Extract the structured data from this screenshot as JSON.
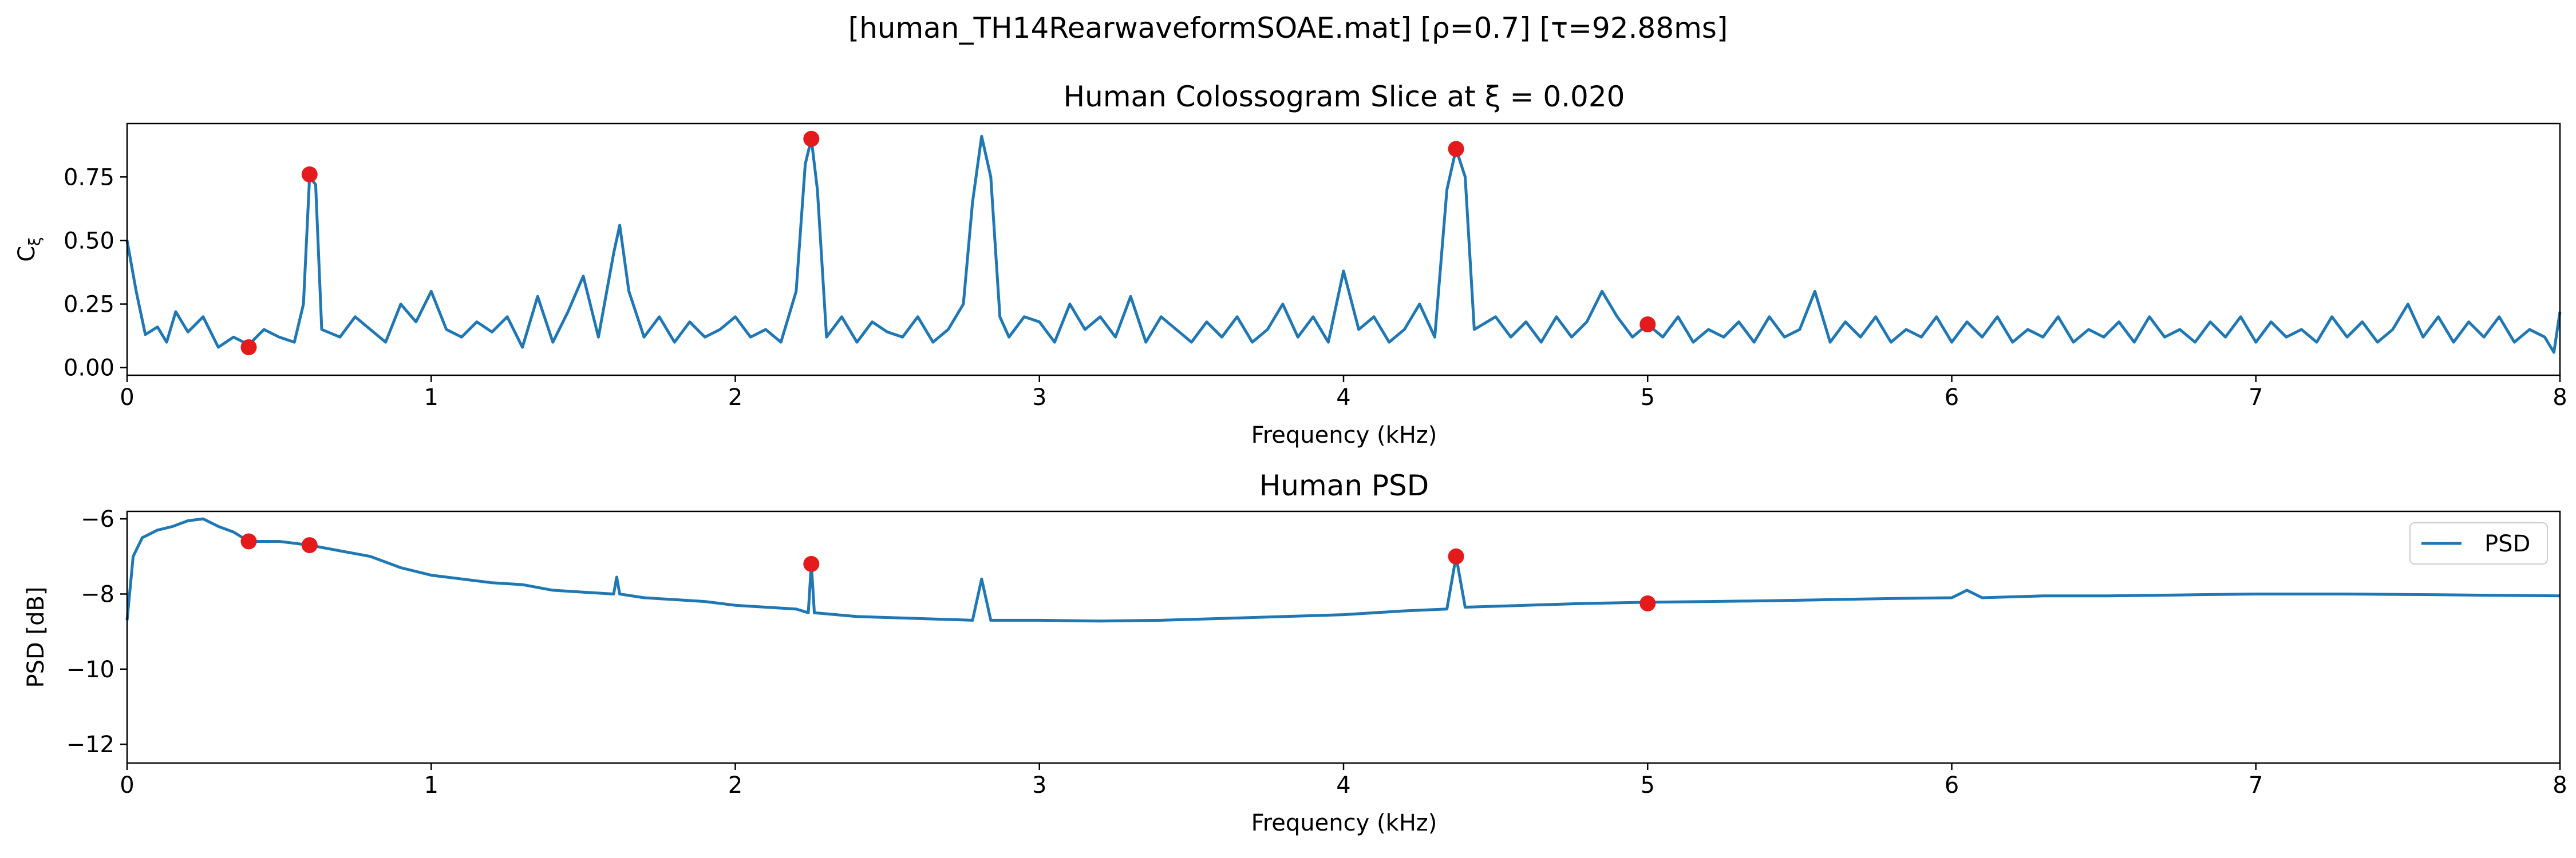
{
  "figure": {
    "suptitle": "[human_TH14RearwaveformSOAE.mat]   [ρ=0.7]   [τ=92.88ms]"
  },
  "chart_data": [
    {
      "type": "line",
      "title": "Human Colossogram Slice at ξ = 0.020",
      "xlabel": "Frequency (kHz)",
      "ylabel": "C_ξ",
      "xlim": [
        0,
        8
      ],
      "ylim": [
        -0.03,
        0.96
      ],
      "x_ticks": [
        0,
        1,
        2,
        3,
        4,
        5,
        6,
        7,
        8
      ],
      "x_tick_labels": [
        "0",
        "1",
        "2",
        "3",
        "4",
        "5",
        "6",
        "7",
        "8"
      ],
      "y_ticks": [
        0.0,
        0.25,
        0.5,
        0.75
      ],
      "y_tick_labels": [
        "0.00",
        "0.25",
        "0.50",
        "0.75"
      ],
      "grid": false,
      "series": [
        {
          "color": "#1f77b4",
          "points": [
            [
              0,
              0.5
            ],
            [
              0.03,
              0.3
            ],
            [
              0.06,
              0.13
            ],
            [
              0.1,
              0.16
            ],
            [
              0.13,
              0.1
            ],
            [
              0.16,
              0.22
            ],
            [
              0.2,
              0.14
            ],
            [
              0.25,
              0.2
            ],
            [
              0.3,
              0.08
            ],
            [
              0.35,
              0.12
            ],
            [
              0.4,
              0.09
            ],
            [
              0.45,
              0.15
            ],
            [
              0.5,
              0.12
            ],
            [
              0.55,
              0.1
            ],
            [
              0.58,
              0.25
            ],
            [
              0.6,
              0.75
            ],
            [
              0.62,
              0.72
            ],
            [
              0.64,
              0.15
            ],
            [
              0.7,
              0.12
            ],
            [
              0.75,
              0.2
            ],
            [
              0.8,
              0.15
            ],
            [
              0.85,
              0.1
            ],
            [
              0.9,
              0.25
            ],
            [
              0.95,
              0.18
            ],
            [
              1.0,
              0.3
            ],
            [
              1.05,
              0.15
            ],
            [
              1.1,
              0.12
            ],
            [
              1.15,
              0.18
            ],
            [
              1.2,
              0.14
            ],
            [
              1.25,
              0.2
            ],
            [
              1.3,
              0.08
            ],
            [
              1.35,
              0.28
            ],
            [
              1.4,
              0.1
            ],
            [
              1.45,
              0.22
            ],
            [
              1.5,
              0.36
            ],
            [
              1.55,
              0.12
            ],
            [
              1.6,
              0.45
            ],
            [
              1.62,
              0.56
            ],
            [
              1.65,
              0.3
            ],
            [
              1.7,
              0.12
            ],
            [
              1.75,
              0.2
            ],
            [
              1.8,
              0.1
            ],
            [
              1.85,
              0.18
            ],
            [
              1.9,
              0.12
            ],
            [
              1.95,
              0.15
            ],
            [
              2.0,
              0.2
            ],
            [
              2.05,
              0.12
            ],
            [
              2.1,
              0.15
            ],
            [
              2.15,
              0.1
            ],
            [
              2.2,
              0.3
            ],
            [
              2.23,
              0.8
            ],
            [
              2.25,
              0.9
            ],
            [
              2.27,
              0.7
            ],
            [
              2.3,
              0.12
            ],
            [
              2.35,
              0.2
            ],
            [
              2.4,
              0.1
            ],
            [
              2.45,
              0.18
            ],
            [
              2.5,
              0.14
            ],
            [
              2.55,
              0.12
            ],
            [
              2.6,
              0.2
            ],
            [
              2.65,
              0.1
            ],
            [
              2.7,
              0.15
            ],
            [
              2.75,
              0.25
            ],
            [
              2.78,
              0.65
            ],
            [
              2.81,
              0.91
            ],
            [
              2.84,
              0.75
            ],
            [
              2.87,
              0.2
            ],
            [
              2.9,
              0.12
            ],
            [
              2.95,
              0.2
            ],
            [
              3.0,
              0.18
            ],
            [
              3.05,
              0.1
            ],
            [
              3.1,
              0.25
            ],
            [
              3.15,
              0.15
            ],
            [
              3.2,
              0.2
            ],
            [
              3.25,
              0.12
            ],
            [
              3.3,
              0.28
            ],
            [
              3.35,
              0.1
            ],
            [
              3.4,
              0.2
            ],
            [
              3.45,
              0.15
            ],
            [
              3.5,
              0.1
            ],
            [
              3.55,
              0.18
            ],
            [
              3.6,
              0.12
            ],
            [
              3.65,
              0.2
            ],
            [
              3.7,
              0.1
            ],
            [
              3.75,
              0.15
            ],
            [
              3.8,
              0.25
            ],
            [
              3.85,
              0.12
            ],
            [
              3.9,
              0.2
            ],
            [
              3.95,
              0.1
            ],
            [
              4.0,
              0.38
            ],
            [
              4.05,
              0.15
            ],
            [
              4.1,
              0.2
            ],
            [
              4.15,
              0.1
            ],
            [
              4.2,
              0.15
            ],
            [
              4.25,
              0.25
            ],
            [
              4.3,
              0.12
            ],
            [
              4.34,
              0.7
            ],
            [
              4.37,
              0.86
            ],
            [
              4.4,
              0.75
            ],
            [
              4.43,
              0.15
            ],
            [
              4.5,
              0.2
            ],
            [
              4.55,
              0.12
            ],
            [
              4.6,
              0.18
            ],
            [
              4.65,
              0.1
            ],
            [
              4.7,
              0.2
            ],
            [
              4.75,
              0.12
            ],
            [
              4.8,
              0.18
            ],
            [
              4.85,
              0.3
            ],
            [
              4.9,
              0.2
            ],
            [
              4.95,
              0.12
            ],
            [
              5.0,
              0.17
            ],
            [
              5.05,
              0.12
            ],
            [
              5.1,
              0.2
            ],
            [
              5.15,
              0.1
            ],
            [
              5.2,
              0.15
            ],
            [
              5.25,
              0.12
            ],
            [
              5.3,
              0.18
            ],
            [
              5.35,
              0.1
            ],
            [
              5.4,
              0.2
            ],
            [
              5.45,
              0.12
            ],
            [
              5.5,
              0.15
            ],
            [
              5.55,
              0.3
            ],
            [
              5.6,
              0.1
            ],
            [
              5.65,
              0.18
            ],
            [
              5.7,
              0.12
            ],
            [
              5.75,
              0.2
            ],
            [
              5.8,
              0.1
            ],
            [
              5.85,
              0.15
            ],
            [
              5.9,
              0.12
            ],
            [
              5.95,
              0.2
            ],
            [
              6.0,
              0.1
            ],
            [
              6.05,
              0.18
            ],
            [
              6.1,
              0.12
            ],
            [
              6.15,
              0.2
            ],
            [
              6.2,
              0.1
            ],
            [
              6.25,
              0.15
            ],
            [
              6.3,
              0.12
            ],
            [
              6.35,
              0.2
            ],
            [
              6.4,
              0.1
            ],
            [
              6.45,
              0.15
            ],
            [
              6.5,
              0.12
            ],
            [
              6.55,
              0.18
            ],
            [
              6.6,
              0.1
            ],
            [
              6.65,
              0.2
            ],
            [
              6.7,
              0.12
            ],
            [
              6.75,
              0.15
            ],
            [
              6.8,
              0.1
            ],
            [
              6.85,
              0.18
            ],
            [
              6.9,
              0.12
            ],
            [
              6.95,
              0.2
            ],
            [
              7.0,
              0.1
            ],
            [
              7.05,
              0.18
            ],
            [
              7.1,
              0.12
            ],
            [
              7.15,
              0.15
            ],
            [
              7.2,
              0.1
            ],
            [
              7.25,
              0.2
            ],
            [
              7.3,
              0.12
            ],
            [
              7.35,
              0.18
            ],
            [
              7.4,
              0.1
            ],
            [
              7.45,
              0.15
            ],
            [
              7.5,
              0.25
            ],
            [
              7.55,
              0.12
            ],
            [
              7.6,
              0.2
            ],
            [
              7.65,
              0.1
            ],
            [
              7.7,
              0.18
            ],
            [
              7.75,
              0.12
            ],
            [
              7.8,
              0.2
            ],
            [
              7.85,
              0.1
            ],
            [
              7.9,
              0.15
            ],
            [
              7.95,
              0.12
            ],
            [
              7.98,
              0.06
            ],
            [
              8.0,
              0.22
            ]
          ]
        }
      ],
      "markers": {
        "color": "#e41a1c",
        "points": [
          [
            0.4,
            0.08
          ],
          [
            0.6,
            0.76
          ],
          [
            2.25,
            0.9
          ],
          [
            4.37,
            0.86
          ],
          [
            5.0,
            0.17
          ]
        ]
      }
    },
    {
      "type": "line",
      "title": "Human PSD",
      "xlabel": "Frequency (kHz)",
      "ylabel": "PSD [dB]",
      "xlim": [
        0,
        8
      ],
      "ylim": [
        -12.5,
        -5.8
      ],
      "x_ticks": [
        0,
        1,
        2,
        3,
        4,
        5,
        6,
        7,
        8
      ],
      "x_tick_labels": [
        "0",
        "1",
        "2",
        "3",
        "4",
        "5",
        "6",
        "7",
        "8"
      ],
      "y_ticks": [
        -12,
        -10,
        -8,
        -6
      ],
      "y_tick_labels": [
        "−12",
        "−10",
        "−8",
        "−6"
      ],
      "grid": false,
      "legend": {
        "position": "top-right",
        "entries": [
          "PSD"
        ]
      },
      "series": [
        {
          "name": "PSD",
          "color": "#1f77b4",
          "points": [
            [
              0,
              -8.7
            ],
            [
              0.02,
              -7
            ],
            [
              0.05,
              -6.5
            ],
            [
              0.1,
              -6.3
            ],
            [
              0.15,
              -6.2
            ],
            [
              0.2,
              -6.05
            ],
            [
              0.25,
              -6.0
            ],
            [
              0.3,
              -6.2
            ],
            [
              0.35,
              -6.35
            ],
            [
              0.4,
              -6.6
            ],
            [
              0.5,
              -6.6
            ],
            [
              0.6,
              -6.7
            ],
            [
              0.7,
              -6.85
            ],
            [
              0.8,
              -7.0
            ],
            [
              0.9,
              -7.3
            ],
            [
              1.0,
              -7.5
            ],
            [
              1.1,
              -7.6
            ],
            [
              1.2,
              -7.7
            ],
            [
              1.3,
              -7.75
            ],
            [
              1.4,
              -7.9
            ],
            [
              1.5,
              -7.95
            ],
            [
              1.6,
              -8.0
            ],
            [
              1.61,
              -7.55
            ],
            [
              1.62,
              -8.0
            ],
            [
              1.7,
              -8.1
            ],
            [
              1.8,
              -8.15
            ],
            [
              1.9,
              -8.2
            ],
            [
              2.0,
              -8.3
            ],
            [
              2.1,
              -8.35
            ],
            [
              2.2,
              -8.4
            ],
            [
              2.24,
              -8.5
            ],
            [
              2.25,
              -7.2
            ],
            [
              2.26,
              -8.5
            ],
            [
              2.4,
              -8.6
            ],
            [
              2.6,
              -8.65
            ],
            [
              2.78,
              -8.7
            ],
            [
              2.81,
              -7.6
            ],
            [
              2.84,
              -8.7
            ],
            [
              3.0,
              -8.7
            ],
            [
              3.2,
              -8.72
            ],
            [
              3.4,
              -8.7
            ],
            [
              3.6,
              -8.65
            ],
            [
              3.8,
              -8.6
            ],
            [
              4.0,
              -8.55
            ],
            [
              4.2,
              -8.45
            ],
            [
              4.34,
              -8.4
            ],
            [
              4.37,
              -7.0
            ],
            [
              4.4,
              -8.35
            ],
            [
              4.6,
              -8.3
            ],
            [
              4.8,
              -8.25
            ],
            [
              5.0,
              -8.22
            ],
            [
              5.2,
              -8.2
            ],
            [
              5.4,
              -8.18
            ],
            [
              5.6,
              -8.15
            ],
            [
              5.8,
              -8.12
            ],
            [
              6.0,
              -8.1
            ],
            [
              6.05,
              -7.9
            ],
            [
              6.1,
              -8.1
            ],
            [
              6.3,
              -8.05
            ],
            [
              6.5,
              -8.05
            ],
            [
              6.8,
              -8.02
            ],
            [
              7.0,
              -8.0
            ],
            [
              7.3,
              -8.0
            ],
            [
              7.6,
              -8.02
            ],
            [
              8.0,
              -8.05
            ]
          ]
        }
      ],
      "markers": {
        "color": "#e41a1c",
        "points": [
          [
            0.4,
            -6.6
          ],
          [
            0.6,
            -6.7
          ],
          [
            2.25,
            -7.2
          ],
          [
            4.37,
            -7.0
          ],
          [
            5.0,
            -8.25
          ]
        ]
      }
    }
  ]
}
